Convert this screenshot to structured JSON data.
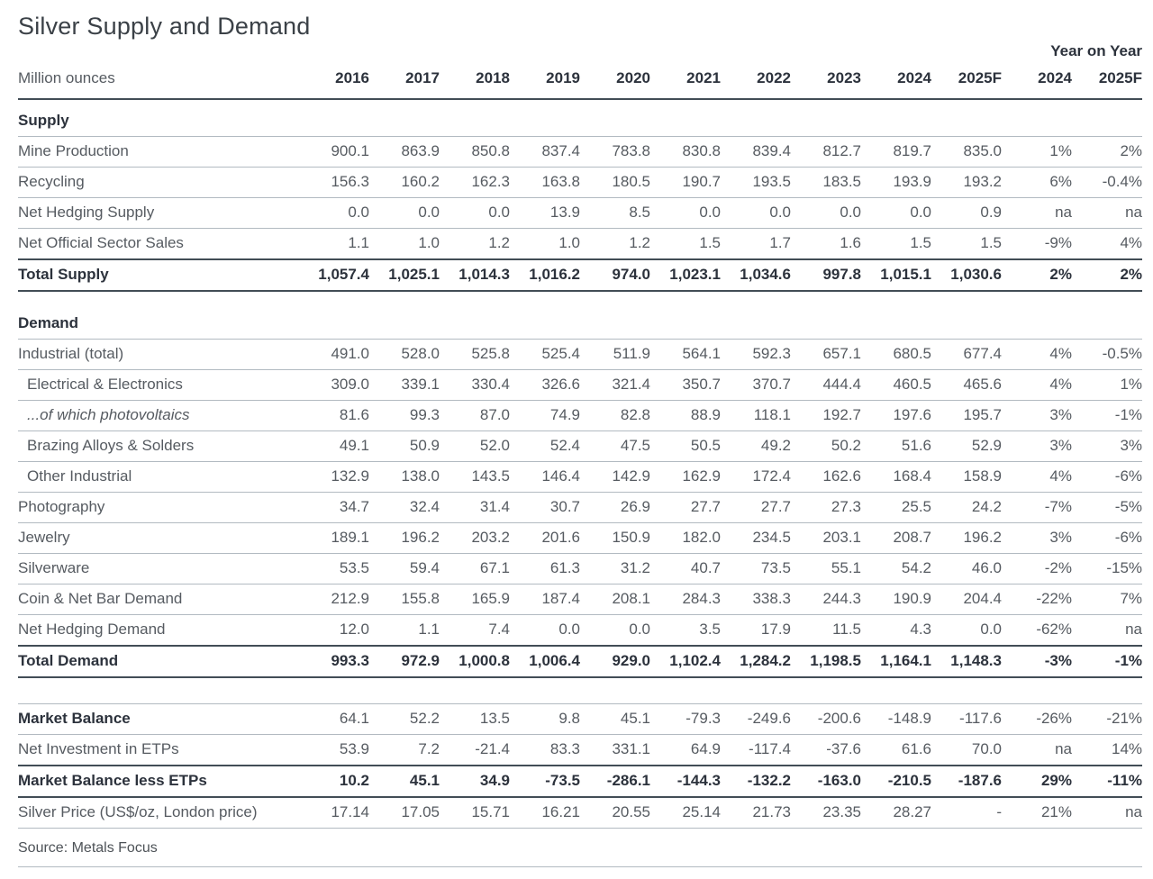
{
  "title": "Silver Supply and Demand",
  "unit_label": "Million ounces",
  "yoy_label": "Year on Year",
  "source": "Source: Metals Focus",
  "table": {
    "year_columns": [
      "2016",
      "2017",
      "2018",
      "2019",
      "2020",
      "2021",
      "2022",
      "2023",
      "2024",
      "2025F"
    ],
    "yoy_columns": [
      "2024",
      "2025F"
    ],
    "rows": [
      {
        "type": "section",
        "label": "Supply"
      },
      {
        "type": "row",
        "label": "Mine Production",
        "values": [
          "900.1",
          "863.9",
          "850.8",
          "837.4",
          "783.8",
          "830.8",
          "839.4",
          "812.7",
          "819.7",
          "835.0",
          "1%",
          "2%"
        ]
      },
      {
        "type": "row",
        "label": "Recycling",
        "values": [
          "156.3",
          "160.2",
          "162.3",
          "163.8",
          "180.5",
          "190.7",
          "193.5",
          "183.5",
          "193.9",
          "193.2",
          "6%",
          "-0.4%"
        ]
      },
      {
        "type": "row",
        "label": "Net Hedging Supply",
        "values": [
          "0.0",
          "0.0",
          "0.0",
          "13.9",
          "8.5",
          "0.0",
          "0.0",
          "0.0",
          "0.0",
          "0.9",
          "na",
          "na"
        ]
      },
      {
        "type": "row",
        "label": "Net Official Sector Sales",
        "values": [
          "1.1",
          "1.0",
          "1.2",
          "1.0",
          "1.2",
          "1.5",
          "1.7",
          "1.6",
          "1.5",
          "1.5",
          "-9%",
          "4%"
        ]
      },
      {
        "type": "total",
        "label": "Total Supply",
        "values": [
          "1,057.4",
          "1,025.1",
          "1,014.3",
          "1,016.2",
          "974.0",
          "1,023.1",
          "1,034.6",
          "997.8",
          "1,015.1",
          "1,030.6",
          "2%",
          "2%"
        ]
      },
      {
        "type": "spacer"
      },
      {
        "type": "section",
        "label": "Demand"
      },
      {
        "type": "row",
        "label": "Industrial (total)",
        "values": [
          "491.0",
          "528.0",
          "525.8",
          "525.4",
          "511.9",
          "564.1",
          "592.3",
          "657.1",
          "680.5",
          "677.4",
          "4%",
          "-0.5%"
        ]
      },
      {
        "type": "row",
        "indent": 1,
        "label": "Electrical & Electronics",
        "values": [
          "309.0",
          "339.1",
          "330.4",
          "326.6",
          "321.4",
          "350.7",
          "370.7",
          "444.4",
          "460.5",
          "465.6",
          "4%",
          "1%"
        ]
      },
      {
        "type": "row",
        "indent": 1,
        "italic": true,
        "label": "...of which photovoltaics",
        "values": [
          "81.6",
          "99.3",
          "87.0",
          "74.9",
          "82.8",
          "88.9",
          "118.1",
          "192.7",
          "197.6",
          "195.7",
          "3%",
          "-1%"
        ]
      },
      {
        "type": "row",
        "indent": 1,
        "label": "Brazing Alloys & Solders",
        "values": [
          "49.1",
          "50.9",
          "52.0",
          "52.4",
          "47.5",
          "50.5",
          "49.2",
          "50.2",
          "51.6",
          "52.9",
          "3%",
          "3%"
        ]
      },
      {
        "type": "row",
        "indent": 1,
        "label": "Other Industrial",
        "values": [
          "132.9",
          "138.0",
          "143.5",
          "146.4",
          "142.9",
          "162.9",
          "172.4",
          "162.6",
          "168.4",
          "158.9",
          "4%",
          "-6%"
        ]
      },
      {
        "type": "row",
        "label": "Photography",
        "values": [
          "34.7",
          "32.4",
          "31.4",
          "30.7",
          "26.9",
          "27.7",
          "27.7",
          "27.3",
          "25.5",
          "24.2",
          "-7%",
          "-5%"
        ]
      },
      {
        "type": "row",
        "label": "Jewelry",
        "values": [
          "189.1",
          "196.2",
          "203.2",
          "201.6",
          "150.9",
          "182.0",
          "234.5",
          "203.1",
          "208.7",
          "196.2",
          "3%",
          "-6%"
        ]
      },
      {
        "type": "row",
        "label": "Silverware",
        "values": [
          "53.5",
          "59.4",
          "67.1",
          "61.3",
          "31.2",
          "40.7",
          "73.5",
          "55.1",
          "54.2",
          "46.0",
          "-2%",
          "-15%"
        ]
      },
      {
        "type": "row",
        "label": "Coin & Net Bar Demand",
        "values": [
          "212.9",
          "155.8",
          "165.9",
          "187.4",
          "208.1",
          "284.3",
          "338.3",
          "244.3",
          "190.9",
          "204.4",
          "-22%",
          "7%"
        ]
      },
      {
        "type": "row",
        "label": "Net Hedging Demand",
        "values": [
          "12.0",
          "1.1",
          "7.4",
          "0.0",
          "0.0",
          "3.5",
          "17.9",
          "11.5",
          "4.3",
          "0.0",
          "-62%",
          "na"
        ]
      },
      {
        "type": "total",
        "label": "Total Demand",
        "values": [
          "993.3",
          "972.9",
          "1,000.8",
          "1,006.4",
          "929.0",
          "1,102.4",
          "1,284.2",
          "1,198.5",
          "1,164.1",
          "1,148.3",
          "-3%",
          "-1%"
        ]
      },
      {
        "type": "spacer",
        "tall": true
      },
      {
        "type": "row",
        "label_bold": true,
        "topline": true,
        "label": "Market Balance",
        "values": [
          "64.1",
          "52.2",
          "13.5",
          "9.8",
          "45.1",
          "-79.3",
          "-249.6",
          "-200.6",
          "-148.9",
          "-117.6",
          "-26%",
          "-21%"
        ]
      },
      {
        "type": "row",
        "label": "Net Investment in ETPs",
        "values": [
          "53.9",
          "7.2",
          "-21.4",
          "83.3",
          "331.1",
          "64.9",
          "-117.4",
          "-37.6",
          "61.6",
          "70.0",
          "na",
          "14%"
        ]
      },
      {
        "type": "total",
        "label": "Market Balance less ETPs",
        "values": [
          "10.2",
          "45.1",
          "34.9",
          "-73.5",
          "-286.1",
          "-144.3",
          "-132.2",
          "-163.0",
          "-210.5",
          "-187.6",
          "29%",
          "-11%"
        ]
      },
      {
        "type": "row",
        "label": "Silver Price (US$/oz, London price)",
        "values": [
          "17.14",
          "17.05",
          "15.71",
          "16.21",
          "20.55",
          "25.14",
          "21.73",
          "23.35",
          "28.27",
          "-",
          "21%",
          "na"
        ]
      }
    ]
  },
  "colors": {
    "heading_text": "#2c323c",
    "body_text": "#565b61",
    "rule_light": "#b2bac1",
    "rule_dark": "#424d56"
  }
}
